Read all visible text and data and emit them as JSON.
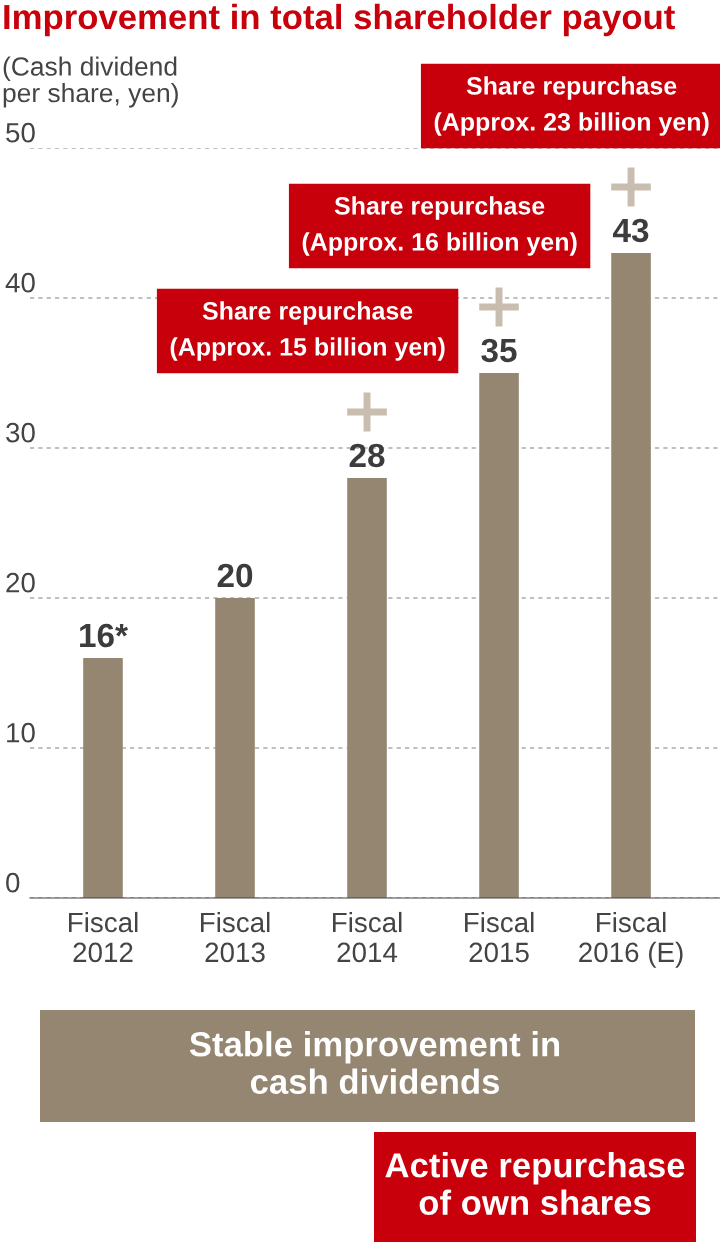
{
  "chart_data": {
    "type": "bar",
    "title": "Improvement in total shareholder payout",
    "ylabel": "(Cash dividend\nper share, yen)",
    "categories": [
      "Fiscal\n2012",
      "Fiscal\n2013",
      "Fiscal\n2014",
      "Fiscal\n2015",
      "Fiscal\n2016 (E)"
    ],
    "values": [
      16,
      20,
      28,
      35,
      43
    ],
    "value_labels": [
      "16*",
      "20",
      "28",
      "35",
      "43"
    ],
    "color": "#958671",
    "ylim": [
      0,
      50
    ],
    "yticks": [
      0,
      10,
      20,
      30,
      40,
      50
    ],
    "grid": "y",
    "legend": false,
    "annotations": [
      "Share repurchase\n(Approx. 15 billion yen)",
      "Share repurchase\n(Approx. 16 billion yen)",
      "Share repurchase\n(Approx. 23 billion yen)",
      "Stable improvement in\ncash dividends",
      "Active repurchase\nof own shares"
    ]
  }
}
